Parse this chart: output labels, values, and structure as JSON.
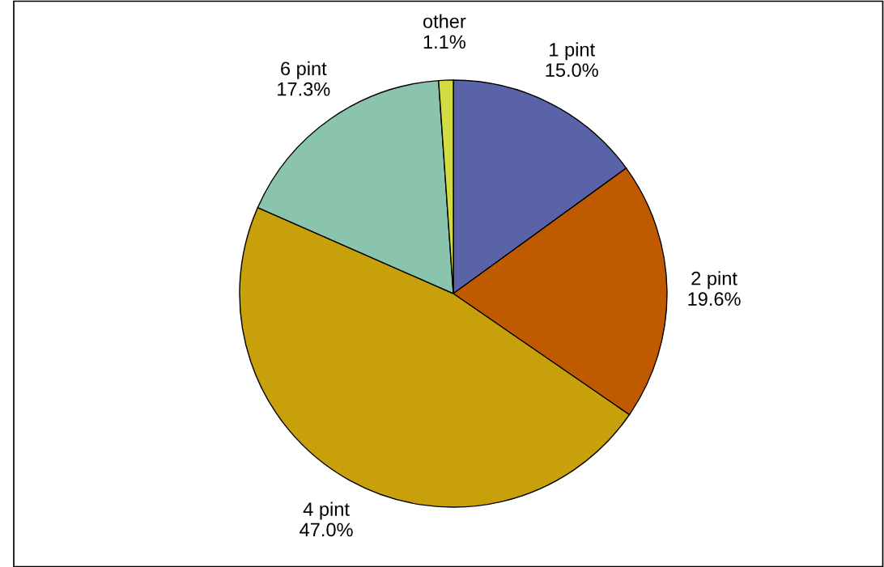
{
  "chart_data": {
    "type": "pie",
    "categories": [
      "1 pint",
      "2 pint",
      "4 pint",
      "6 pint",
      "other"
    ],
    "values": [
      15.0,
      19.6,
      47.0,
      17.3,
      1.1
    ],
    "value_labels": [
      "15.0%",
      "19.6%",
      "47.0%",
      "17.3%",
      "1.1%"
    ],
    "colors": [
      "#5a62a8",
      "#c05a00",
      "#c8a00c",
      "#8ac4ac",
      "#d4dc44"
    ],
    "legend": false
  }
}
